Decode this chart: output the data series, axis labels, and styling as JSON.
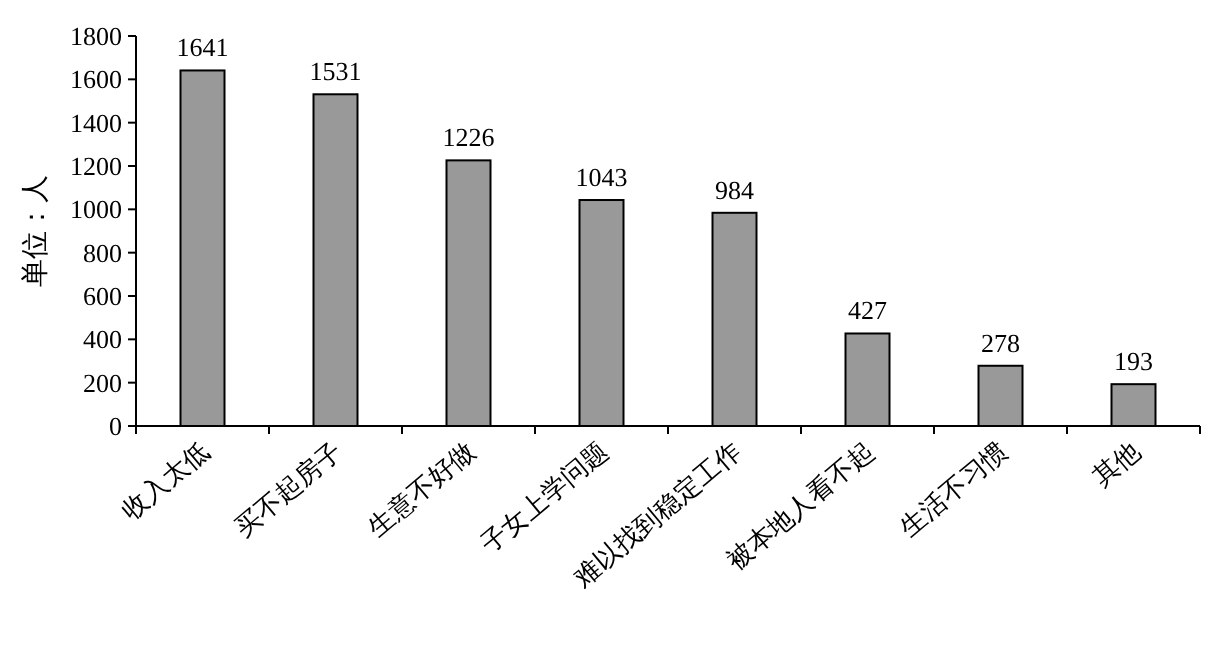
{
  "chart_data": {
    "type": "bar",
    "ylabel": "单位：人",
    "categories": [
      "收入太低",
      "买不起房子",
      "生意不好做",
      "子女上学问题",
      "难以找到稳定工作",
      "被本地人看不起",
      "生活不习惯",
      "其他"
    ],
    "values": [
      1641,
      1531,
      1226,
      1043,
      984,
      427,
      278,
      193
    ],
    "color": "#999999",
    "ylim": [
      0,
      1800
    ],
    "yticks": [
      0,
      200,
      400,
      600,
      800,
      1000,
      1200,
      1400,
      1600,
      1800
    ],
    "data_labels": true
  }
}
